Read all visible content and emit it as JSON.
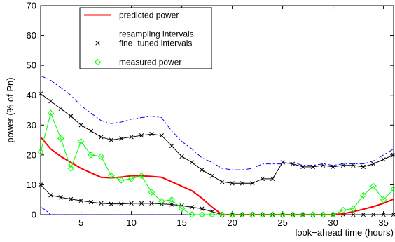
{
  "chart_data": {
    "type": "line",
    "xlabel": "look−ahead time (hours)",
    "ylabel": "power (% of Pn)",
    "xlim": [
      1,
      36
    ],
    "ylim": [
      0,
      70
    ],
    "xticks": [
      "5",
      "10",
      "15",
      "20",
      "25",
      "30",
      "35"
    ],
    "yticks": [
      "0",
      "10",
      "20",
      "30",
      "40",
      "50",
      "60",
      "70"
    ],
    "grid": false,
    "legend_position": "top-left",
    "series": [
      {
        "name": "predicted power",
        "color": "#ff0000",
        "style": "solid",
        "marker": "none",
        "x": [
          1,
          2,
          3,
          4,
          5,
          6,
          7,
          8,
          9,
          10,
          11,
          12,
          13,
          14,
          15,
          16,
          17,
          18,
          19,
          20,
          21,
          22,
          23,
          24,
          25,
          26,
          27,
          28,
          29,
          30,
          31,
          32,
          33,
          34,
          35,
          36
        ],
        "y": [
          26,
          22,
          19.5,
          17.5,
          15.5,
          14,
          12.5,
          12.3,
          12.6,
          13,
          13,
          12.8,
          12.5,
          11,
          9.5,
          8,
          5.5,
          2.5,
          0,
          0,
          0,
          0,
          0,
          0,
          0,
          0,
          0,
          0,
          0,
          0,
          0.3,
          1,
          1.8,
          2.7,
          3.8,
          5.2
        ]
      },
      {
        "name": "resampling intervals",
        "color": "#0000ff",
        "style": "dashdot",
        "marker": "none",
        "x": [
          1,
          2,
          3,
          4,
          5,
          6,
          7,
          8,
          9,
          10,
          11,
          12,
          13,
          14,
          15,
          16,
          17,
          18,
          19,
          20,
          21,
          22,
          23,
          24,
          25,
          26,
          27,
          28,
          29,
          30,
          31,
          32,
          33,
          34,
          35,
          36
        ],
        "y": [
          46.5,
          45,
          42.5,
          40,
          36.5,
          34,
          31.5,
          30.5,
          31,
          32,
          32.5,
          33,
          32.5,
          28,
          24.5,
          22,
          19,
          17.5,
          15.5,
          15,
          15,
          15.5,
          17,
          17,
          17,
          17.5,
          16.5,
          16.5,
          17,
          16.5,
          17,
          17,
          17,
          18,
          20,
          22
        ]
      },
      {
        "name": "fine−tuned intervals",
        "color": "#000000",
        "style": "solid",
        "marker": "x",
        "x": [
          1,
          2,
          3,
          4,
          5,
          6,
          7,
          8,
          9,
          10,
          11,
          12,
          13,
          14,
          15,
          16,
          17,
          18,
          19,
          20,
          21,
          22,
          23,
          24,
          25,
          26,
          27,
          28,
          29,
          30,
          31,
          32,
          33,
          34,
          35,
          36
        ],
        "y": [
          40.5,
          38,
          35.5,
          33,
          30,
          28,
          26,
          25,
          25.5,
          26,
          26.5,
          27,
          26.5,
          23,
          19.5,
          17.5,
          15,
          13,
          11,
          10.5,
          10.5,
          10.5,
          12,
          12,
          17.5,
          17,
          16,
          16,
          16.5,
          16,
          16.5,
          16.5,
          16,
          17,
          18.5,
          20
        ]
      },
      {
        "name": "",
        "color": "#000000",
        "style": "solid",
        "marker": "x",
        "x": [
          1,
          2,
          3,
          4,
          5,
          6,
          7,
          8,
          9,
          10,
          11,
          12,
          13,
          14,
          15,
          16,
          17,
          18,
          19,
          20,
          21,
          22,
          23,
          24,
          25,
          26,
          27,
          28,
          29,
          30,
          31,
          32,
          33,
          34,
          35,
          36
        ],
        "y": [
          10,
          6.5,
          5.8,
          5.2,
          4.7,
          4.2,
          3.8,
          3.6,
          3.6,
          3.8,
          3.8,
          3.8,
          3.6,
          3.4,
          3,
          2.5,
          2,
          1,
          0,
          0,
          0,
          0,
          0,
          0,
          0,
          0,
          0,
          0,
          0,
          0,
          0,
          0,
          0,
          0,
          0,
          0
        ]
      },
      {
        "name": "",
        "color": "#0000ff",
        "style": "dashdot",
        "marker": "none",
        "x": [
          1,
          1.5,
          2,
          3,
          4,
          5,
          6,
          7,
          8,
          9,
          10,
          11,
          12,
          13,
          14,
          15,
          16,
          17,
          18,
          19,
          20,
          21,
          22,
          23,
          24,
          25,
          26,
          27,
          28,
          29,
          30,
          31,
          32,
          33,
          34,
          35,
          36
        ],
        "y": [
          2.5,
          1.5,
          0,
          0,
          0,
          0,
          0,
          0,
          0,
          0,
          0,
          0,
          0,
          0,
          0,
          0,
          0,
          0,
          0,
          0,
          0,
          0,
          0,
          0,
          0,
          0,
          0,
          0,
          0,
          0,
          0,
          0,
          0,
          0,
          0,
          0,
          0
        ]
      },
      {
        "name": "measured power",
        "color": "#00ff00",
        "style": "solid",
        "marker": "diamond",
        "x": [
          1,
          2,
          3,
          4,
          5,
          6,
          7,
          8,
          9,
          10,
          11,
          12,
          13,
          14,
          15,
          16,
          17,
          18,
          19,
          20,
          21,
          22,
          23,
          24,
          25,
          26,
          27,
          28,
          29,
          30,
          31,
          32,
          33,
          34,
          35,
          36
        ],
        "y": [
          21,
          34,
          25.5,
          15.5,
          24.5,
          20,
          19.5,
          13,
          11.5,
          12,
          13,
          7.5,
          4.5,
          5,
          2,
          0,
          0,
          0,
          0,
          0,
          0,
          0,
          0,
          0,
          0,
          0,
          0,
          0,
          0,
          0,
          1.5,
          2,
          6.5,
          9.5,
          5,
          8.5
        ]
      }
    ]
  }
}
